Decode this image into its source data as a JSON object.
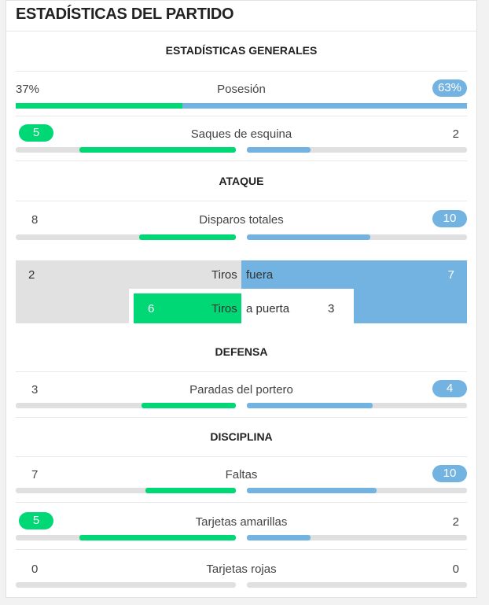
{
  "header": {
    "title": "ESTADÍSTICAS DEL PARTIDO"
  },
  "sections": {
    "general": "ESTADÍSTICAS GENERALES",
    "attack": "ATAQUE",
    "defense": "DEFENSA",
    "discipline": "DISCIPLINA"
  },
  "colors": {
    "home": "#00d775",
    "away": "#73b3e2",
    "track": "#e0e0e0"
  },
  "stats": {
    "possession": {
      "label": "Posesión",
      "home": "37%",
      "away": "63%",
      "home_share": 0.37,
      "away_share": 0.63
    },
    "corners": {
      "label": "Saques de esquina",
      "home": "5",
      "away": "2",
      "home_share": 0.71,
      "away_share": 0.29
    },
    "total_shots": {
      "label": "Disparos totales",
      "home": "8",
      "away": "10",
      "home_share": 0.44,
      "away_share": 0.56
    },
    "saves": {
      "label": "Paradas del portero",
      "home": "3",
      "away": "4",
      "home_share": 0.43,
      "away_share": 0.57
    },
    "fouls": {
      "label": "Faltas",
      "home": "7",
      "away": "10",
      "home_share": 0.41,
      "away_share": 0.59
    },
    "yellow_cards": {
      "label": "Tarjetas amarillas",
      "home": "5",
      "away": "2",
      "home_share": 0.71,
      "away_share": 0.29
    },
    "red_cards": {
      "label": "Tarjetas rojas",
      "home": "0",
      "away": "0",
      "home_share": 0,
      "away_share": 0
    }
  },
  "shots_box": {
    "off_target": {
      "word1": "Tiros",
      "word2": "fuera",
      "home": "2",
      "away": "7"
    },
    "on_target": {
      "word1": "Tiros",
      "word2": "a puerta",
      "home": "6",
      "away": "3"
    }
  }
}
